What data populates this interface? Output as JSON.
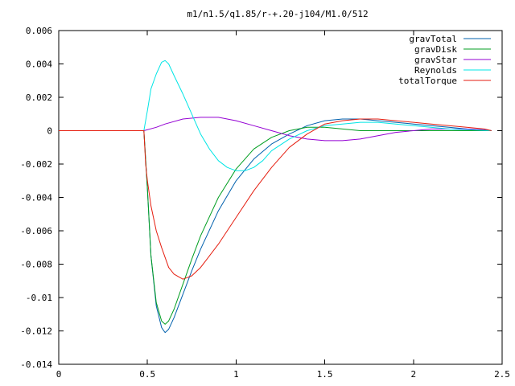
{
  "chart_data": {
    "type": "line",
    "title": "m1/n1.5/q1.85/r-+.20-j104/M1.0/512",
    "xlabel": "",
    "ylabel": "",
    "xlim": [
      0,
      2.5
    ],
    "ylim": [
      -0.014,
      0.006
    ],
    "xticks": [
      "0",
      "0.5",
      "1",
      "1.5",
      "2",
      "2.5"
    ],
    "xtick_values": [
      0,
      0.5,
      1,
      1.5,
      2,
      2.5
    ],
    "yticks": [
      "0.006",
      "0.004",
      "0.002",
      "0",
      "-0.002",
      "-0.004",
      "-0.006",
      "-0.008",
      "-0.01",
      "-0.012",
      "-0.014"
    ],
    "ytick_values": [
      0.006,
      0.004,
      0.002,
      0,
      -0.002,
      -0.004,
      -0.006,
      -0.008,
      -0.01,
      -0.012,
      -0.014
    ],
    "grid": false,
    "legend_position": "top-right",
    "series": [
      {
        "name": "gravTotal",
        "color": "#0060ad",
        "x": [
          0,
          0.48,
          0.5,
          0.52,
          0.55,
          0.58,
          0.6,
          0.62,
          0.65,
          0.7,
          0.75,
          0.8,
          0.9,
          1.0,
          1.1,
          1.2,
          1.3,
          1.4,
          1.5,
          1.6,
          1.7,
          1.8,
          1.9,
          2.0,
          2.1,
          2.2,
          2.3,
          2.4,
          2.44
        ],
        "y": [
          0,
          0,
          -0.0035,
          -0.0075,
          -0.0105,
          -0.0118,
          -0.0121,
          -0.0119,
          -0.0112,
          -0.0098,
          -0.0084,
          -0.0071,
          -0.0048,
          -0.003,
          -0.0017,
          -0.0008,
          -0.0002,
          0.0003,
          0.0006,
          0.0007,
          0.0007,
          0.0006,
          0.0005,
          0.0004,
          0.0003,
          0.0002,
          0.0001,
          5e-05,
          0
        ]
      },
      {
        "name": "gravDisk",
        "color": "#009e20",
        "x": [
          0,
          0.48,
          0.5,
          0.52,
          0.55,
          0.58,
          0.6,
          0.62,
          0.65,
          0.7,
          0.75,
          0.8,
          0.9,
          1.0,
          1.1,
          1.2,
          1.3,
          1.4,
          1.5,
          1.6,
          1.7,
          1.8,
          1.9,
          2.0,
          2.1,
          2.2,
          2.3,
          2.4,
          2.44
        ],
        "y": [
          0,
          0,
          -0.0035,
          -0.0075,
          -0.0103,
          -0.0114,
          -0.0116,
          -0.0114,
          -0.0107,
          -0.0092,
          -0.0077,
          -0.0063,
          -0.004,
          -0.0023,
          -0.0011,
          -0.0004,
          0.0,
          0.0002,
          0.0002,
          0.0001,
          0.0,
          0.0,
          0.0,
          0.0,
          0.0,
          0.0,
          0.0,
          0.0,
          0
        ]
      },
      {
        "name": "gravStar",
        "color": "#9400d3",
        "x": [
          0,
          0.48,
          0.55,
          0.6,
          0.7,
          0.8,
          0.9,
          1.0,
          1.1,
          1.2,
          1.3,
          1.4,
          1.5,
          1.6,
          1.7,
          1.8,
          1.9,
          2.0,
          2.1,
          2.2,
          2.3,
          2.4,
          2.44
        ],
        "y": [
          0,
          0,
          0.0002,
          0.0004,
          0.0007,
          0.0008,
          0.0008,
          0.0006,
          0.0003,
          0.0,
          -0.0003,
          -0.0005,
          -0.0006,
          -0.0006,
          -0.0005,
          -0.0003,
          -0.0001,
          0.0,
          0.0001,
          0.0001,
          0.0001,
          5e-05,
          0
        ]
      },
      {
        "name": "Reynolds",
        "color": "#00e5e5",
        "x": [
          0,
          0.48,
          0.5,
          0.52,
          0.55,
          0.58,
          0.6,
          0.62,
          0.65,
          0.7,
          0.75,
          0.8,
          0.85,
          0.9,
          0.95,
          1.0,
          1.05,
          1.1,
          1.15,
          1.2,
          1.3,
          1.4,
          1.5,
          1.6,
          1.7,
          1.8,
          1.9,
          2.0,
          2.2,
          2.44
        ],
        "y": [
          0,
          0,
          0.0012,
          0.0025,
          0.0034,
          0.0041,
          0.0042,
          0.004,
          0.0033,
          0.0022,
          0.001,
          -0.0002,
          -0.0011,
          -0.0018,
          -0.0022,
          -0.0024,
          -0.0024,
          -0.0022,
          -0.0018,
          -0.0012,
          -0.0005,
          0.0,
          0.0003,
          0.0004,
          0.0005,
          0.0005,
          0.0004,
          0.0003,
          0.0001,
          0
        ]
      },
      {
        "name": "totalTorque",
        "color": "#e51e10",
        "x": [
          0,
          0.48,
          0.49,
          0.5,
          0.52,
          0.55,
          0.58,
          0.6,
          0.62,
          0.65,
          0.7,
          0.75,
          0.8,
          0.9,
          1.0,
          1.1,
          1.2,
          1.3,
          1.4,
          1.5,
          1.6,
          1.7,
          1.8,
          1.9,
          2.0,
          2.1,
          2.2,
          2.3,
          2.4,
          2.44
        ],
        "y": [
          0,
          0,
          -0.002,
          -0.003,
          -0.0045,
          -0.006,
          -0.007,
          -0.0076,
          -0.0082,
          -0.0086,
          -0.0089,
          -0.0087,
          -0.0082,
          -0.0068,
          -0.0052,
          -0.0036,
          -0.0022,
          -0.001,
          -0.0002,
          0.0004,
          0.0006,
          0.0007,
          0.0007,
          0.0006,
          0.0005,
          0.0004,
          0.0003,
          0.0002,
          0.0001,
          0
        ]
      }
    ]
  }
}
